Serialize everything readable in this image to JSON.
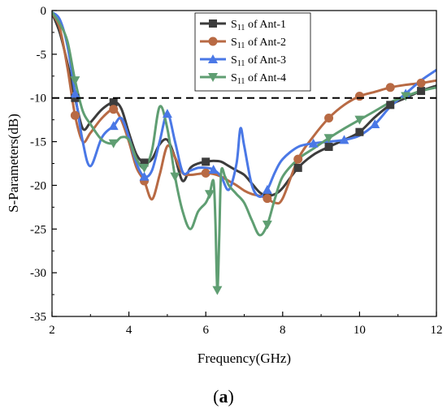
{
  "caption": {
    "open": "(",
    "letter": "a",
    "close": ")"
  },
  "chart_data": {
    "type": "line",
    "xlabel": "Frequency(GHz)",
    "ylabel": "S-Parameters(dB)",
    "xlim": [
      2,
      12
    ],
    "ylim": [
      -35,
      0
    ],
    "xticks": [
      2,
      4,
      6,
      8,
      10,
      12
    ],
    "yticks": [
      0,
      -5,
      -10,
      -15,
      -20,
      -25,
      -30,
      -35
    ],
    "grid": false,
    "legend_position": "top-right",
    "reference_line": {
      "y": -10,
      "style": "dashed",
      "color": "#000000"
    },
    "series": [
      {
        "name_main": "S",
        "name_sub": "11",
        "name_rest": " of Ant-1",
        "color": "#3c3c3c",
        "marker": "square",
        "x": [
          2.0,
          2.2,
          2.4,
          2.6,
          2.8,
          3.0,
          3.3,
          3.6,
          3.8,
          4.0,
          4.2,
          4.4,
          4.6,
          4.8,
          5.0,
          5.2,
          5.4,
          5.6,
          5.8,
          6.0,
          6.2,
          6.4,
          6.6,
          6.8,
          7.0,
          7.2,
          7.4,
          7.6,
          7.8,
          8.0,
          8.4,
          8.8,
          9.2,
          9.6,
          10.0,
          10.4,
          10.8,
          11.2,
          11.6,
          12.0
        ],
        "y": [
          -0.3,
          -2.5,
          -6.0,
          -10.0,
          -13.5,
          -12.8,
          -11.3,
          -10.5,
          -11.2,
          -14.0,
          -16.5,
          -17.4,
          -17.0,
          -15.3,
          -14.8,
          -16.8,
          -19.5,
          -18.0,
          -17.5,
          -17.3,
          -17.2,
          -17.3,
          -17.8,
          -18.3,
          -18.8,
          -19.8,
          -20.8,
          -21.2,
          -21.0,
          -20.3,
          -18.0,
          -16.5,
          -15.6,
          -14.8,
          -13.9,
          -12.2,
          -10.8,
          -10.0,
          -9.2,
          -8.6
        ],
        "marker_index": [
          3,
          7,
          11,
          19,
          27,
          30,
          32,
          34,
          36,
          38
        ]
      },
      {
        "name_main": "S",
        "name_sub": "11",
        "name_rest": " of Ant-2",
        "color": "#b86a44",
        "marker": "circle",
        "x": [
          2.0,
          2.2,
          2.4,
          2.6,
          2.8,
          3.0,
          3.3,
          3.6,
          3.8,
          4.0,
          4.2,
          4.4,
          4.6,
          4.8,
          5.0,
          5.2,
          5.4,
          5.6,
          5.8,
          6.0,
          6.2,
          6.4,
          6.6,
          6.8,
          7.0,
          7.2,
          7.4,
          7.6,
          7.8,
          8.0,
          8.4,
          8.8,
          9.2,
          9.6,
          10.0,
          10.4,
          10.8,
          11.2,
          11.6,
          12.0
        ],
        "y": [
          -0.3,
          -2.0,
          -6.5,
          -12.0,
          -15.0,
          -14.0,
          -12.3,
          -11.3,
          -12.5,
          -15.0,
          -18.0,
          -19.5,
          -21.6,
          -18.8,
          -15.5,
          -16.8,
          -18.6,
          -18.8,
          -18.7,
          -18.6,
          -18.7,
          -19.0,
          -19.5,
          -20.0,
          -20.6,
          -21.0,
          -21.2,
          -21.5,
          -22.0,
          -21.5,
          -17.0,
          -14.4,
          -12.3,
          -10.8,
          -9.8,
          -9.3,
          -8.8,
          -8.5,
          -8.3,
          -8.0
        ],
        "marker_index": [
          3,
          7,
          11,
          19,
          27,
          30,
          32,
          34,
          36,
          38
        ]
      },
      {
        "name_main": "S",
        "name_sub": "11",
        "name_rest": " of Ant-3",
        "color": "#4a78e6",
        "marker": "triangle-up",
        "x": [
          2.0,
          2.2,
          2.4,
          2.6,
          2.8,
          3.0,
          3.3,
          3.6,
          3.8,
          4.0,
          4.2,
          4.4,
          4.6,
          4.8,
          5.0,
          5.2,
          5.4,
          5.6,
          5.8,
          6.0,
          6.2,
          6.4,
          6.6,
          6.8,
          6.9,
          7.0,
          7.2,
          7.4,
          7.6,
          7.8,
          8.0,
          8.4,
          8.8,
          9.2,
          9.6,
          10.0,
          10.4,
          10.8,
          11.2,
          11.6,
          12.0
        ],
        "y": [
          -0.2,
          -1.0,
          -4.0,
          -9.5,
          -15.0,
          -17.8,
          -14.5,
          -13.2,
          -12.3,
          -14.5,
          -17.5,
          -19.0,
          -18.3,
          -15.0,
          -11.8,
          -15.0,
          -18.5,
          -18.3,
          -18.0,
          -18.0,
          -18.2,
          -19.0,
          -20.5,
          -17.5,
          -13.5,
          -15.5,
          -20.0,
          -21.3,
          -20.5,
          -18.5,
          -17.0,
          -15.6,
          -15.2,
          -15.0,
          -14.8,
          -14.3,
          -13.0,
          -11.0,
          -9.5,
          -8.0,
          -6.8
        ],
        "marker_index": [
          3,
          7,
          11,
          14,
          20,
          28,
          32,
          34,
          36,
          38
        ]
      },
      {
        "name_main": "S",
        "name_sub": "11",
        "name_rest": " of Ant-4",
        "color": "#5f9e72",
        "marker": "triangle-down",
        "x": [
          2.0,
          2.2,
          2.4,
          2.6,
          2.8,
          3.0,
          3.3,
          3.6,
          3.8,
          4.0,
          4.2,
          4.4,
          4.6,
          4.8,
          5.0,
          5.2,
          5.4,
          5.6,
          5.8,
          6.0,
          6.1,
          6.2,
          6.25,
          6.3,
          6.35,
          6.4,
          6.5,
          6.6,
          6.8,
          7.0,
          7.2,
          7.4,
          7.6,
          7.8,
          8.0,
          8.4,
          8.8,
          9.2,
          9.6,
          10.0,
          10.4,
          10.8,
          11.2,
          11.6,
          12.0
        ],
        "y": [
          -0.2,
          -1.5,
          -3.5,
          -8.0,
          -11.5,
          -13.0,
          -14.8,
          -15.2,
          -14.5,
          -14.8,
          -17.0,
          -18.0,
          -16.0,
          -11.0,
          -13.5,
          -19.0,
          -23.0,
          -25.0,
          -23.0,
          -22.0,
          -21.0,
          -19.5,
          -24.0,
          -32.0,
          -26.0,
          -18.5,
          -19.0,
          -20.0,
          -21.0,
          -22.0,
          -24.0,
          -25.7,
          -24.5,
          -21.5,
          -19.0,
          -17.0,
          -15.8,
          -14.6,
          -13.5,
          -12.5,
          -11.5,
          -10.5,
          -9.8,
          -9.2,
          -8.8
        ],
        "marker_index": [
          3,
          7,
          11,
          15,
          20,
          23,
          32,
          37,
          39,
          42
        ]
      }
    ]
  }
}
